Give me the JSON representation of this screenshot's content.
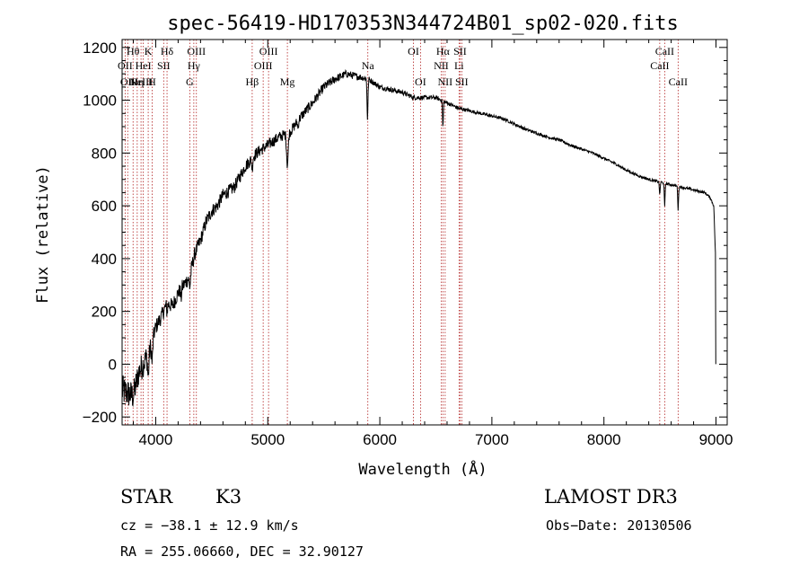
{
  "chart_data": {
    "type": "line",
    "title": "spec-56419-HD170353N344724B01_sp02-020.fits",
    "xlabel": "Wavelength (Å)",
    "ylabel": "Flux (relative)",
    "xlim": [
      3700,
      9100
    ],
    "ylim": [
      -230,
      1230
    ],
    "xticks": [
      4000,
      5000,
      6000,
      7000,
      8000,
      9000
    ],
    "yticks": [
      -200,
      0,
      200,
      400,
      600,
      800,
      1000,
      1200
    ],
    "spectrum_anchors": [
      [
        3700,
        -100
      ],
      [
        3800,
        -120
      ],
      [
        3850,
        -30
      ],
      [
        3900,
        10
      ],
      [
        3950,
        60
      ],
      [
        4000,
        140
      ],
      [
        4050,
        180
      ],
      [
        4100,
        230
      ],
      [
        4150,
        220
      ],
      [
        4200,
        270
      ],
      [
        4250,
        300
      ],
      [
        4300,
        330
      ],
      [
        4350,
        420
      ],
      [
        4400,
        470
      ],
      [
        4450,
        540
      ],
      [
        4500,
        580
      ],
      [
        4550,
        600
      ],
      [
        4600,
        640
      ],
      [
        4700,
        670
      ],
      [
        4800,
        750
      ],
      [
        4900,
        800
      ],
      [
        5000,
        830
      ],
      [
        5100,
        860
      ],
      [
        5200,
        880
      ],
      [
        5300,
        940
      ],
      [
        5400,
        990
      ],
      [
        5500,
        1050
      ],
      [
        5600,
        1080
      ],
      [
        5700,
        1100
      ],
      [
        5800,
        1090
      ],
      [
        5900,
        1080
      ],
      [
        6000,
        1050
      ],
      [
        6100,
        1040
      ],
      [
        6200,
        1030
      ],
      [
        6300,
        1010
      ],
      [
        6400,
        1010
      ],
      [
        6500,
        1010
      ],
      [
        6600,
        990
      ],
      [
        6700,
        970
      ],
      [
        6800,
        960
      ],
      [
        6900,
        950
      ],
      [
        7000,
        940
      ],
      [
        7100,
        930
      ],
      [
        7200,
        910
      ],
      [
        7300,
        890
      ],
      [
        7400,
        875
      ],
      [
        7500,
        860
      ],
      [
        7600,
        850
      ],
      [
        7700,
        830
      ],
      [
        7800,
        815
      ],
      [
        7900,
        800
      ],
      [
        8000,
        780
      ],
      [
        8100,
        760
      ],
      [
        8200,
        735
      ],
      [
        8300,
        715
      ],
      [
        8400,
        700
      ],
      [
        8500,
        690
      ],
      [
        8600,
        680
      ],
      [
        8700,
        670
      ],
      [
        8800,
        660
      ],
      [
        8900,
        650
      ],
      [
        8950,
        630
      ],
      [
        8980,
        600
      ],
      [
        8995,
        420
      ],
      [
        9000,
        0
      ]
    ],
    "spectrum_noise": [
      [
        3700,
        60
      ],
      [
        3900,
        50
      ],
      [
        4000,
        30
      ],
      [
        4300,
        28
      ],
      [
        4500,
        26
      ],
      [
        5000,
        22
      ],
      [
        5500,
        18
      ],
      [
        6000,
        10
      ],
      [
        7000,
        6
      ],
      [
        8000,
        5
      ],
      [
        9000,
        5
      ]
    ],
    "absorption_features": [
      {
        "x": 3933,
        "depth": 90,
        "width": 8
      },
      {
        "x": 3968,
        "depth": 80,
        "width": 8
      },
      {
        "x": 4101,
        "depth": 30,
        "width": 6
      },
      {
        "x": 4226,
        "depth": 40,
        "width": 5
      },
      {
        "x": 4305,
        "depth": 45,
        "width": 8
      },
      {
        "x": 4861,
        "depth": 40,
        "width": 6
      },
      {
        "x": 5175,
        "depth": 120,
        "width": 10
      },
      {
        "x": 5270,
        "depth": 30,
        "width": 5
      },
      {
        "x": 5890,
        "depth": 150,
        "width": 6
      },
      {
        "x": 6563,
        "depth": 100,
        "width": 5
      },
      {
        "x": 8498,
        "depth": 50,
        "width": 5
      },
      {
        "x": 8542,
        "depth": 90,
        "width": 5
      },
      {
        "x": 8662,
        "depth": 90,
        "width": 5
      }
    ],
    "line_markers": [
      {
        "x": 3727,
        "label": "OII",
        "row": 2
      },
      {
        "x": 3750,
        "label": "OII",
        "row": 3
      },
      {
        "x": 3798,
        "label": "Hθ",
        "row": 1
      },
      {
        "x": 3835,
        "label": "Hη",
        "row": 3
      },
      {
        "x": 3869,
        "label": "NeIII",
        "row": 3
      },
      {
        "x": 3889,
        "label": "HeI",
        "row": 2
      },
      {
        "x": 3933,
        "label": "K",
        "row": 1
      },
      {
        "x": 3968,
        "label": "H",
        "row": 3
      },
      {
        "x": 4071,
        "label": "SII",
        "row": 2
      },
      {
        "x": 4101,
        "label": "Hδ",
        "row": 1
      },
      {
        "x": 4304,
        "label": "G",
        "row": 3
      },
      {
        "x": 4340,
        "label": "Hγ",
        "row": 2
      },
      {
        "x": 4363,
        "label": "OIII",
        "row": 1
      },
      {
        "x": 4861,
        "label": "Hβ",
        "row": 3
      },
      {
        "x": 4959,
        "label": "OIII",
        "row": 2
      },
      {
        "x": 5007,
        "label": "OIII",
        "row": 1
      },
      {
        "x": 5175,
        "label": "Mg",
        "row": 3
      },
      {
        "x": 5893,
        "label": "Na",
        "row": 2
      },
      {
        "x": 6300,
        "label": "OI",
        "row": 1
      },
      {
        "x": 6363,
        "label": "OI",
        "row": 3
      },
      {
        "x": 6548,
        "label": "NII",
        "row": 2
      },
      {
        "x": 6563,
        "label": "Hα",
        "row": 1
      },
      {
        "x": 6583,
        "label": "NII",
        "row": 3
      },
      {
        "x": 6707,
        "label": "Li",
        "row": 2
      },
      {
        "x": 6716,
        "label": "SII",
        "row": 1
      },
      {
        "x": 6731,
        "label": "SII",
        "row": 3
      },
      {
        "x": 8498,
        "label": "CaII",
        "row": 2
      },
      {
        "x": 8542,
        "label": "CaII",
        "row": 1
      },
      {
        "x": 8662,
        "label": "CaII",
        "row": 3
      }
    ]
  },
  "info": {
    "object_class": "STAR",
    "subclass": "K3",
    "survey": "LAMOST DR3",
    "cz": "cz = −38.1 ± 12.9 km/s",
    "obs_date": "Obs−Date: 20130506",
    "coords": "RA = 255.06660, DEC =  32.90127"
  },
  "colors": {
    "axes": "#000000",
    "spectrum": "#000000",
    "marker": "#b22222"
  }
}
